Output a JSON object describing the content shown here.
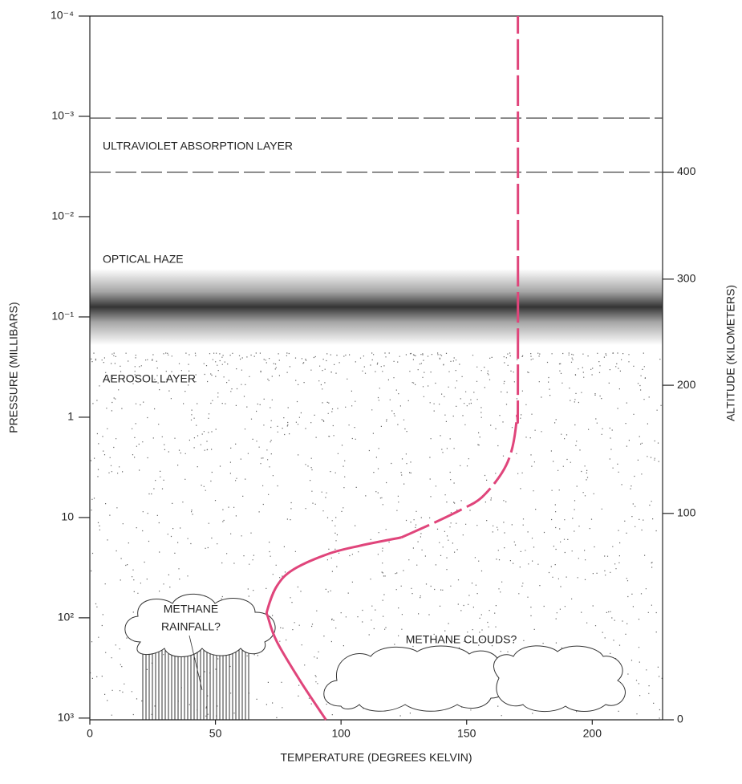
{
  "chart_data": {
    "type": "line",
    "x_label": "TEMPERATURE (DEGREES KELVIN)",
    "y_label": "PRESSURE (MILLIBARS)",
    "y2_label": "ALTITUDE (KILOMETERS)",
    "xlim": [
      0,
      228
    ],
    "xticks": [
      0,
      50,
      100,
      150,
      200
    ],
    "ylim": [
      0.0001,
      1040
    ],
    "ylog": true,
    "y_inverted": true,
    "yticks": [
      {
        "value": 0.0001,
        "label": "10⁻⁴"
      },
      {
        "value": 0.001,
        "label": "10⁻³"
      },
      {
        "value": 0.01,
        "label": "10⁻²"
      },
      {
        "value": 0.1,
        "label": "10⁻¹"
      },
      1,
      10,
      {
        "value": 100,
        "label": "10²"
      },
      {
        "value": 1000,
        "label": "10³"
      }
    ],
    "y2ticks": [
      0,
      100,
      200,
      300,
      400
    ],
    "y2_pressure": [
      1040,
      9.1,
      0.48,
      0.042,
      0.0036
    ],
    "series": [
      {
        "color": "#e0457b",
        "style": "solid",
        "x": [
          94,
          84,
          74.5,
          71,
          70.7,
          74.5,
          81,
          95,
          108,
          124
        ],
        "values": [
          1040,
          436,
          174,
          100,
          83,
          48,
          33,
          23,
          19,
          15.8
        ]
      },
      {
        "color": "#e0457b",
        "style": "dashed",
        "x": [
          124,
          137,
          148,
          156,
          164,
          168,
          170,
          170.4,
          170.4
        ],
        "values": [
          15.8,
          11.3,
          8.3,
          6.3,
          3.6,
          2.1,
          1,
          0.48,
          0.0001
        ]
      }
    ],
    "hlines": [
      0.00104,
      0.0036
    ],
    "annotations": {
      "uv": "ULTRAVIOLET ABSORPTION LAYER",
      "haze": "OPTICAL HAZE",
      "aerosol": "AEROSOL LAYER",
      "rain1": "METHANE",
      "rain2": "RAINFALL?",
      "clouds": "METHANE CLOUDS?"
    }
  }
}
